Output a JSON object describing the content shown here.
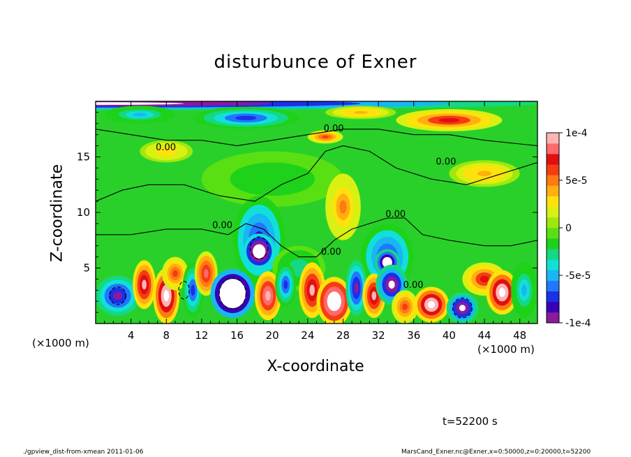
{
  "figure": {
    "title": "disturbunce of Exner",
    "time_label": "t=52200 s",
    "footer_left": "./gpview_dist-from-xmean   2011-01-06",
    "footer_right": "MarsCand_Exner.nc@Exner,x=0:50000,z=0:20000,t=52200"
  },
  "colors": {
    "background": "#ffffff",
    "frame": "#000000",
    "contour": "#000000"
  },
  "chart_data": {
    "type": "heatmap",
    "title": "disturbunce of Exner",
    "xlabel": "X-coordinate",
    "ylabel": "Z-coordinate",
    "x_unit_label": "(×1000 m)",
    "x_unit_label_right": "(×1000 m)",
    "xlim": [
      0,
      50
    ],
    "ylim": [
      0,
      20
    ],
    "x_ticks": [
      "4",
      "8",
      "12",
      "16",
      "20",
      "24",
      "28",
      "32",
      "36",
      "40",
      "44",
      "48"
    ],
    "y_ticks": [
      "5",
      "10",
      "15"
    ],
    "grid": false,
    "colorbar": {
      "vmin": -0.0001,
      "vmax": 0.0001,
      "tick_labels": [
        "1e-4",
        "5e-5",
        "0",
        "-5e-5",
        "-1e-4"
      ],
      "colors": [
        "#8a1a9e",
        "#3a00b8",
        "#1a30e8",
        "#1f78ff",
        "#18b6f5",
        "#12e0d8",
        "#14d883",
        "#1ed21a",
        "#58e012",
        "#9ee80e",
        "#d8f012",
        "#ffe20c",
        "#ffb010",
        "#ff7a10",
        "#f63c14",
        "#e01010",
        "#ff6a6a",
        "#ffb4b4"
      ]
    },
    "contour_labels": [
      "0.00",
      "0.00",
      "0.00",
      "0.00",
      "0.00",
      "0.00",
      "0.00"
    ],
    "features": [
      {
        "x": 15.5,
        "z": 2.7,
        "value": -0.00018
      },
      {
        "x": 18.5,
        "z": 7.3,
        "value": -0.00012
      },
      {
        "x": 27,
        "z": 2.0,
        "value": 0.00013
      },
      {
        "x": 33,
        "z": 5.3,
        "value": -0.00011
      },
      {
        "x": 41.5,
        "z": 1.4,
        "value": -0.00011
      },
      {
        "x": 38,
        "z": 1.7,
        "value": 0.00012
      },
      {
        "x": 46,
        "z": 2.8,
        "value": 0.00011
      },
      {
        "x": 40,
        "z": 18.3,
        "value": 7e-05
      },
      {
        "x": 17,
        "z": 18.5,
        "value": -7e-05
      },
      {
        "x": 28,
        "z": 11.0,
        "value": 4e-05
      },
      {
        "x": 9,
        "z": 2.5,
        "value": 0.0001
      },
      {
        "x": 2.5,
        "z": 2.5,
        "value": -9e-05
      }
    ]
  }
}
